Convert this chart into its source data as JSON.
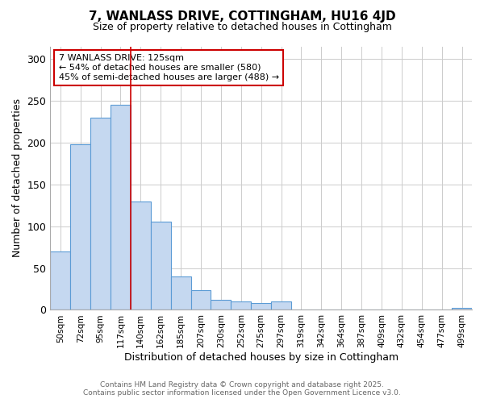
{
  "title": "7, WANLASS DRIVE, COTTINGHAM, HU16 4JD",
  "subtitle": "Size of property relative to detached houses in Cottingham",
  "xlabel": "Distribution of detached houses by size in Cottingham",
  "ylabel": "Number of detached properties",
  "bar_labels": [
    "50sqm",
    "72sqm",
    "95sqm",
    "117sqm",
    "140sqm",
    "162sqm",
    "185sqm",
    "207sqm",
    "230sqm",
    "252sqm",
    "275sqm",
    "297sqm",
    "319sqm",
    "342sqm",
    "364sqm",
    "387sqm",
    "409sqm",
    "432sqm",
    "454sqm",
    "477sqm",
    "499sqm"
  ],
  "bar_values": [
    70,
    198,
    230,
    245,
    130,
    105,
    40,
    24,
    12,
    10,
    8,
    10,
    0,
    0,
    0,
    0,
    0,
    0,
    0,
    0,
    2
  ],
  "bar_color": "#c5d8f0",
  "bar_edge_color": "#5b9bd5",
  "grid_color": "#cccccc",
  "background_color": "#ffffff",
  "vline_color": "#cc0000",
  "vline_pos": 3.5,
  "annotation_text": "7 WANLASS DRIVE: 125sqm\n← 54% of detached houses are smaller (580)\n45% of semi-detached houses are larger (488) →",
  "annotation_box_color": "#cc0000",
  "footer_line1": "Contains HM Land Registry data © Crown copyright and database right 2025.",
  "footer_line2": "Contains public sector information licensed under the Open Government Licence v3.0.",
  "ylim": [
    0,
    315
  ],
  "yticks": [
    0,
    50,
    100,
    150,
    200,
    250,
    300
  ]
}
